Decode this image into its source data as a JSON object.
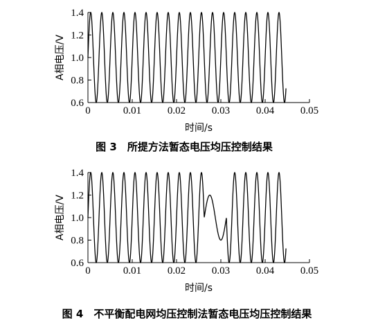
{
  "figures": [
    {
      "caption": "图 3　所提方法暂态电压均压控制结果",
      "ylabel": "A相电压/V",
      "xlabel": "时间/s"
    },
    {
      "caption": "图 4　不平衡配电网均压控制法暂态电压均压控制结果",
      "ylabel": "A相电压/V",
      "xlabel": "时间/s"
    }
  ],
  "chart_data": [
    {
      "type": "line",
      "title": "",
      "xlabel": "时间/s",
      "ylabel": "A相电压/V",
      "xlim": [
        0,
        0.05
      ],
      "ylim": [
        0.6,
        1.4
      ],
      "xticks": [
        "0",
        "0.01",
        "0.02",
        "0.03",
        "0.04",
        "0.05"
      ],
      "yticks": [
        "0.6",
        "0.8",
        "1.0",
        "1.2",
        "1.4"
      ],
      "grid": false,
      "series": [
        {
          "color": "#000000",
          "function": "1.0 + 0.4*sin(2*pi*f*t)",
          "frequency_hz": 400,
          "t_start": 0,
          "t_end": 0.0447,
          "center": 1.0,
          "amplitude": 0.4
        }
      ]
    },
    {
      "type": "line",
      "title": "",
      "xlabel": "时间/s",
      "ylabel": "A相电压/V",
      "xlim": [
        0,
        0.05
      ],
      "ylim": [
        0.6,
        1.4
      ],
      "xticks": [
        "0",
        "0.01",
        "0.02",
        "0.03",
        "0.04",
        "0.05"
      ],
      "yticks": [
        "0.6",
        "0.8",
        "1.0",
        "1.2",
        "1.4"
      ],
      "grid": false,
      "series": [
        {
          "color": "#000000",
          "function": "1.0 + 0.4*sin(2*pi*f*t)",
          "frequency_hz": 400,
          "t_start": 0,
          "t_end": 0.0447,
          "center": 1.0,
          "amplitude": 0.4,
          "disturbance": {
            "t_start": 0.02625,
            "t_end": 0.03125,
            "peak": 1.2,
            "trough": 0.8
          }
        }
      ]
    }
  ]
}
